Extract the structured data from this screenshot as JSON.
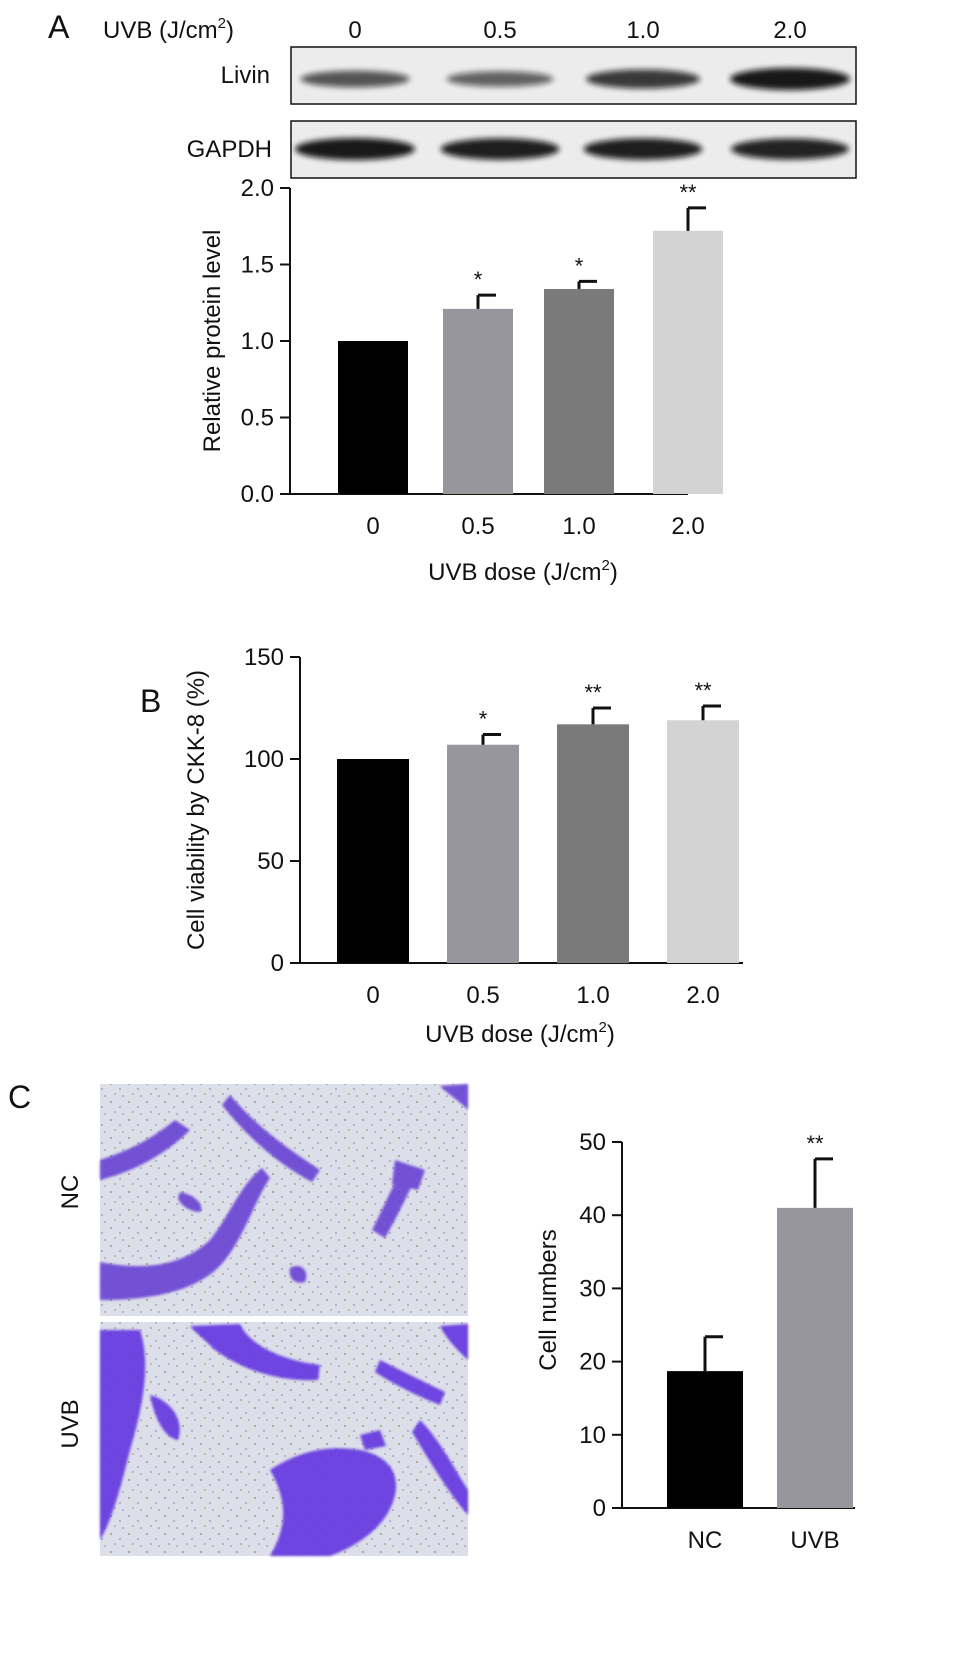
{
  "panels": {
    "a_label": "A",
    "b_label": "B",
    "c_label": "C"
  },
  "blot": {
    "header_label": "UVB (J/cm",
    "header_sup": "2",
    "header_close": ")",
    "doses": [
      "0",
      "0.5",
      "1.0",
      "2.0"
    ],
    "rows": [
      {
        "label": "Livin",
        "intensity": [
          0.55,
          0.45,
          0.75,
          1.0
        ]
      },
      {
        "label": "GAPDH",
        "intensity": [
          1.0,
          0.95,
          0.95,
          0.92
        ]
      }
    ]
  },
  "micrographs": {
    "nc_label": "NC",
    "uvb_label": "UVB"
  },
  "colors": {
    "bar_0": "#000000",
    "bar_1": "#96969c",
    "bar_2": "#7a7a7a",
    "bar_3": "#d3d3d3",
    "stain": "#6a3fd6",
    "field": "#d9dceb"
  },
  "chart_data": [
    {
      "id": "A",
      "type": "bar",
      "categories": [
        "0",
        "0.5",
        "1.0",
        "2.0"
      ],
      "values": [
        1.0,
        1.21,
        1.34,
        1.72
      ],
      "errors": [
        0.0,
        0.09,
        0.05,
        0.15
      ],
      "significance": [
        "",
        "*",
        "*",
        "**"
      ],
      "xlabel": "UVB dose (J/cm",
      "xlabel_sup": "2",
      "xlabel_close": ")",
      "ylabel": "Relative protein level",
      "ylim": [
        0,
        2.0
      ],
      "yticks": [
        "0.0",
        "0.5",
        "1.0",
        "1.5",
        "2.0"
      ],
      "ytick_values": [
        0,
        0.5,
        1.0,
        1.5,
        2.0
      ],
      "colors": [
        "#000000",
        "#96969c",
        "#7a7a7a",
        "#d3d3d3"
      ]
    },
    {
      "id": "B",
      "type": "bar",
      "categories": [
        "0",
        "0.5",
        "1.0",
        "2.0"
      ],
      "values": [
        100,
        107,
        117,
        119
      ],
      "errors": [
        0,
        5,
        8,
        7
      ],
      "significance": [
        "",
        "*",
        "**",
        "**"
      ],
      "xlabel": "UVB dose (J/cm",
      "xlabel_sup": "2",
      "xlabel_close": ")",
      "ylabel": "Cell viability by CKK-8 (%)",
      "ylim": [
        0,
        150
      ],
      "yticks": [
        "0",
        "50",
        "100",
        "150"
      ],
      "ytick_values": [
        0,
        50,
        100,
        150
      ],
      "colors": [
        "#000000",
        "#96969c",
        "#7a7a7a",
        "#d3d3d3"
      ]
    },
    {
      "id": "C",
      "type": "bar",
      "categories": [
        "NC",
        "UVB"
      ],
      "values": [
        18.7,
        41.0
      ],
      "errors": [
        4.7,
        6.7
      ],
      "significance": [
        "",
        "**"
      ],
      "xlabel": "",
      "ylabel": "Cell numbers",
      "ylim": [
        0,
        50
      ],
      "yticks": [
        "0",
        "10",
        "20",
        "30",
        "40",
        "50"
      ],
      "ytick_values": [
        0,
        10,
        20,
        30,
        40,
        50
      ],
      "colors": [
        "#000000",
        "#96969c"
      ]
    }
  ]
}
